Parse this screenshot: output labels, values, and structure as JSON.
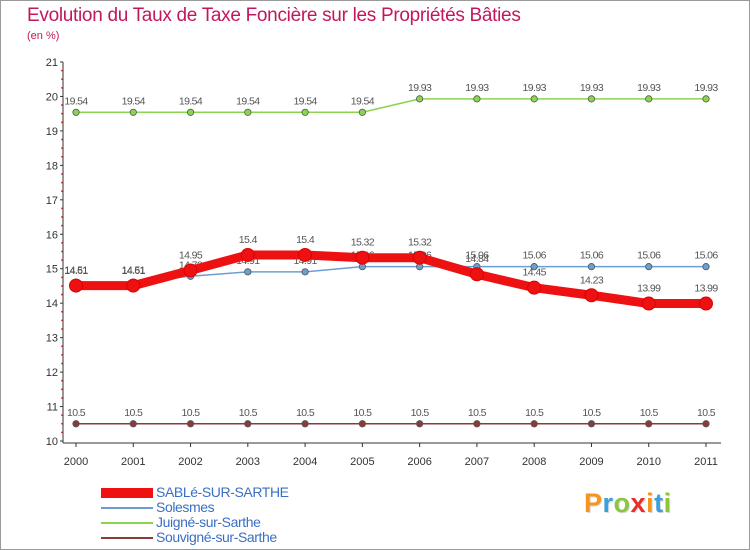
{
  "header": {
    "title": "Evolution du Taux de Taxe Foncière sur les Propriétés Bâties",
    "subtitle": "(en %)"
  },
  "colors": {
    "title": "#c2185b",
    "legend_text": "#3a6fc4"
  },
  "chart_data": {
    "type": "line",
    "title": "Evolution du Taux de Taxe Foncière sur les Propriétés Bâties",
    "ylabel": "(en %)",
    "xlabel": "",
    "ylim": [
      10,
      21
    ],
    "yticks": [
      10,
      11,
      12,
      13,
      14,
      15,
      16,
      17,
      18,
      19,
      20,
      21
    ],
    "x": [
      "2000",
      "2001",
      "2002",
      "2003",
      "2004",
      "2005",
      "2006",
      "2007",
      "2008",
      "2009",
      "2010",
      "2011"
    ],
    "grid": false,
    "legend_position": "bottom-left",
    "series": [
      {
        "name": "Juigné-sur-Sarthe",
        "color": "#8bd450",
        "values": [
          19.54,
          19.54,
          19.54,
          19.54,
          19.54,
          19.54,
          19.93,
          19.93,
          19.93,
          19.93,
          19.93,
          19.93
        ],
        "labels": [
          "19.54",
          "19.54",
          "19.54",
          "19.54",
          "19.54",
          "19.54",
          "19.93",
          "19.93",
          "19.93",
          "19.93",
          "19.93",
          "19.93"
        ]
      },
      {
        "name": "Solesmes",
        "color": "#6c9fd1",
        "values": [
          14.61,
          14.61,
          14.78,
          14.91,
          14.91,
          15.06,
          15.06,
          15.06,
          15.06,
          15.06,
          15.06,
          15.06
        ],
        "labels": [
          "14.61",
          "14.61",
          "14.78",
          "14.91",
          "14.91",
          "15.06",
          "15.06",
          "15.06",
          "15.06",
          "15.06",
          "15.06",
          "15.06"
        ]
      },
      {
        "name": "SABLé-SUR-SARTHE",
        "color": "#ee1111",
        "values": [
          14.51,
          14.51,
          14.95,
          15.4,
          15.4,
          15.32,
          15.32,
          14.84,
          14.45,
          14.23,
          13.99,
          13.99
        ],
        "labels": [
          "14.51",
          "14.51",
          "14.95",
          "15.4",
          "15.4",
          "15.32",
          "15.32",
          "14.84",
          "14.45",
          "14.23",
          "13.99",
          "13.99"
        ]
      },
      {
        "name": "Souvigné-sur-Sarthe",
        "color": "#8b3a3a",
        "values": [
          10.5,
          10.5,
          10.5,
          10.5,
          10.5,
          10.5,
          10.5,
          10.5,
          10.5,
          10.5,
          10.5,
          10.5
        ],
        "labels": [
          "10.5",
          "10.5",
          "10.5",
          "10.5",
          "10.5",
          "10.5",
          "10.5",
          "10.5",
          "10.5",
          "10.5",
          "10.5",
          "10.5"
        ]
      }
    ]
  },
  "legend": [
    {
      "label": "SABLé-SUR-SARTHE",
      "color": "#ee1111",
      "weight": "thick"
    },
    {
      "label": "Solesmes",
      "color": "#6c9fd1",
      "weight": "thin"
    },
    {
      "label": "Juigné-sur-Sarthe",
      "color": "#8bd450",
      "weight": "thin"
    },
    {
      "label": "Souvigné-sur-Sarthe",
      "color": "#8b3a3a",
      "weight": "thin"
    }
  ],
  "logo": {
    "letters": [
      "P",
      "r",
      "o",
      "x",
      "i",
      "t",
      "i"
    ],
    "colors": [
      "#f7941d",
      "#3aa0dc",
      "#8cc63f",
      "#e8302a",
      "#f7941d",
      "#3aa0dc",
      "#8cc63f"
    ]
  }
}
